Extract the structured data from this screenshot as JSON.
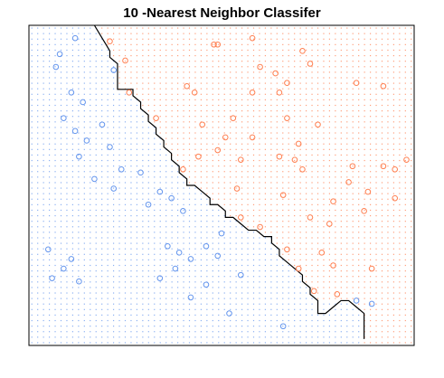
{
  "chart_data": {
    "type": "scatter",
    "title": "10 -Nearest Neighbor Classifer",
    "xlabel": "",
    "ylabel": "",
    "axes_shown": false,
    "grid": false,
    "legend": "none",
    "background": "grid of small dots colored by predicted class",
    "colors": {
      "class_a": "#6495ED",
      "class_b": "#FF7F50",
      "boundary": "#000000",
      "frame": "#000000"
    },
    "series": [
      {
        "class": "class_a",
        "points": [
          [
            0.12,
            0.96
          ],
          [
            0.08,
            0.91
          ],
          [
            0.07,
            0.87
          ],
          [
            0.22,
            0.86
          ],
          [
            0.11,
            0.79
          ],
          [
            0.14,
            0.76
          ],
          [
            0.09,
            0.71
          ],
          [
            0.19,
            0.69
          ],
          [
            0.12,
            0.67
          ],
          [
            0.15,
            0.64
          ],
          [
            0.21,
            0.62
          ],
          [
            0.13,
            0.59
          ],
          [
            0.24,
            0.55
          ],
          [
            0.17,
            0.52
          ],
          [
            0.29,
            0.54
          ],
          [
            0.22,
            0.49
          ],
          [
            0.34,
            0.48
          ],
          [
            0.37,
            0.46
          ],
          [
            0.31,
            0.44
          ],
          [
            0.4,
            0.42
          ],
          [
            0.05,
            0.3
          ],
          [
            0.11,
            0.27
          ],
          [
            0.09,
            0.24
          ],
          [
            0.06,
            0.21
          ],
          [
            0.13,
            0.2
          ],
          [
            0.36,
            0.31
          ],
          [
            0.39,
            0.29
          ],
          [
            0.42,
            0.27
          ],
          [
            0.38,
            0.24
          ],
          [
            0.34,
            0.21
          ],
          [
            0.46,
            0.31
          ],
          [
            0.5,
            0.35
          ],
          [
            0.49,
            0.28
          ],
          [
            0.55,
            0.22
          ],
          [
            0.46,
            0.19
          ],
          [
            0.42,
            0.15
          ],
          [
            0.52,
            0.1
          ],
          [
            0.66,
            0.06
          ],
          [
            0.85,
            0.14
          ],
          [
            0.89,
            0.13
          ]
        ]
      },
      {
        "class": "class_b",
        "points": [
          [
            0.21,
            0.95
          ],
          [
            0.25,
            0.89
          ],
          [
            0.48,
            0.94
          ],
          [
            0.49,
            0.94
          ],
          [
            0.58,
            0.96
          ],
          [
            0.71,
            0.92
          ],
          [
            0.6,
            0.87
          ],
          [
            0.64,
            0.85
          ],
          [
            0.67,
            0.82
          ],
          [
            0.73,
            0.88
          ],
          [
            0.85,
            0.82
          ],
          [
            0.92,
            0.81
          ],
          [
            0.41,
            0.81
          ],
          [
            0.26,
            0.79
          ],
          [
            0.43,
            0.79
          ],
          [
            0.58,
            0.79
          ],
          [
            0.65,
            0.79
          ],
          [
            0.33,
            0.71
          ],
          [
            0.45,
            0.69
          ],
          [
            0.53,
            0.71
          ],
          [
            0.67,
            0.71
          ],
          [
            0.75,
            0.69
          ],
          [
            0.51,
            0.65
          ],
          [
            0.58,
            0.65
          ],
          [
            0.7,
            0.63
          ],
          [
            0.44,
            0.59
          ],
          [
            0.49,
            0.61
          ],
          [
            0.55,
            0.58
          ],
          [
            0.65,
            0.59
          ],
          [
            0.69,
            0.58
          ],
          [
            0.71,
            0.55
          ],
          [
            0.84,
            0.56
          ],
          [
            0.92,
            0.56
          ],
          [
            0.95,
            0.55
          ],
          [
            0.98,
            0.58
          ],
          [
            0.83,
            0.51
          ],
          [
            0.88,
            0.48
          ],
          [
            0.95,
            0.46
          ],
          [
            0.4,
            0.55
          ],
          [
            0.54,
            0.49
          ],
          [
            0.66,
            0.47
          ],
          [
            0.79,
            0.45
          ],
          [
            0.87,
            0.42
          ],
          [
            0.55,
            0.4
          ],
          [
            0.73,
            0.4
          ],
          [
            0.78,
            0.38
          ],
          [
            0.6,
            0.37
          ],
          [
            0.67,
            0.3
          ],
          [
            0.76,
            0.29
          ],
          [
            0.79,
            0.25
          ],
          [
            0.7,
            0.24
          ],
          [
            0.89,
            0.24
          ],
          [
            0.74,
            0.17
          ],
          [
            0.8,
            0.16
          ]
        ]
      }
    ],
    "decision_boundary": [
      [
        0.17,
        1.0
      ],
      [
        0.18,
        0.98
      ],
      [
        0.19,
        0.96
      ],
      [
        0.2,
        0.94
      ],
      [
        0.21,
        0.92
      ],
      [
        0.21,
        0.9
      ],
      [
        0.23,
        0.88
      ],
      [
        0.23,
        0.86
      ],
      [
        0.23,
        0.84
      ],
      [
        0.23,
        0.82
      ],
      [
        0.23,
        0.8
      ],
      [
        0.25,
        0.8
      ],
      [
        0.27,
        0.8
      ],
      [
        0.27,
        0.78
      ],
      [
        0.29,
        0.76
      ],
      [
        0.29,
        0.74
      ],
      [
        0.31,
        0.72
      ],
      [
        0.31,
        0.7
      ],
      [
        0.33,
        0.68
      ],
      [
        0.33,
        0.66
      ],
      [
        0.35,
        0.64
      ],
      [
        0.35,
        0.62
      ],
      [
        0.37,
        0.6
      ],
      [
        0.37,
        0.58
      ],
      [
        0.39,
        0.56
      ],
      [
        0.39,
        0.54
      ],
      [
        0.41,
        0.52
      ],
      [
        0.41,
        0.5
      ],
      [
        0.43,
        0.5
      ],
      [
        0.45,
        0.48
      ],
      [
        0.47,
        0.46
      ],
      [
        0.47,
        0.44
      ],
      [
        0.49,
        0.44
      ],
      [
        0.51,
        0.42
      ],
      [
        0.51,
        0.4
      ],
      [
        0.53,
        0.4
      ],
      [
        0.55,
        0.38
      ],
      [
        0.57,
        0.36
      ],
      [
        0.59,
        0.36
      ],
      [
        0.61,
        0.34
      ],
      [
        0.63,
        0.34
      ],
      [
        0.63,
        0.32
      ],
      [
        0.65,
        0.3
      ],
      [
        0.65,
        0.28
      ],
      [
        0.67,
        0.26
      ],
      [
        0.69,
        0.24
      ],
      [
        0.71,
        0.22
      ],
      [
        0.71,
        0.2
      ],
      [
        0.73,
        0.18
      ],
      [
        0.73,
        0.16
      ],
      [
        0.75,
        0.14
      ],
      [
        0.75,
        0.12
      ],
      [
        0.75,
        0.1
      ],
      [
        0.77,
        0.1
      ],
      [
        0.79,
        0.12
      ],
      [
        0.81,
        0.14
      ],
      [
        0.83,
        0.14
      ],
      [
        0.85,
        0.12
      ],
      [
        0.87,
        0.1
      ],
      [
        0.87,
        0.08
      ],
      [
        0.87,
        0.06
      ],
      [
        0.87,
        0.04
      ],
      [
        0.87,
        0.02
      ]
    ]
  }
}
